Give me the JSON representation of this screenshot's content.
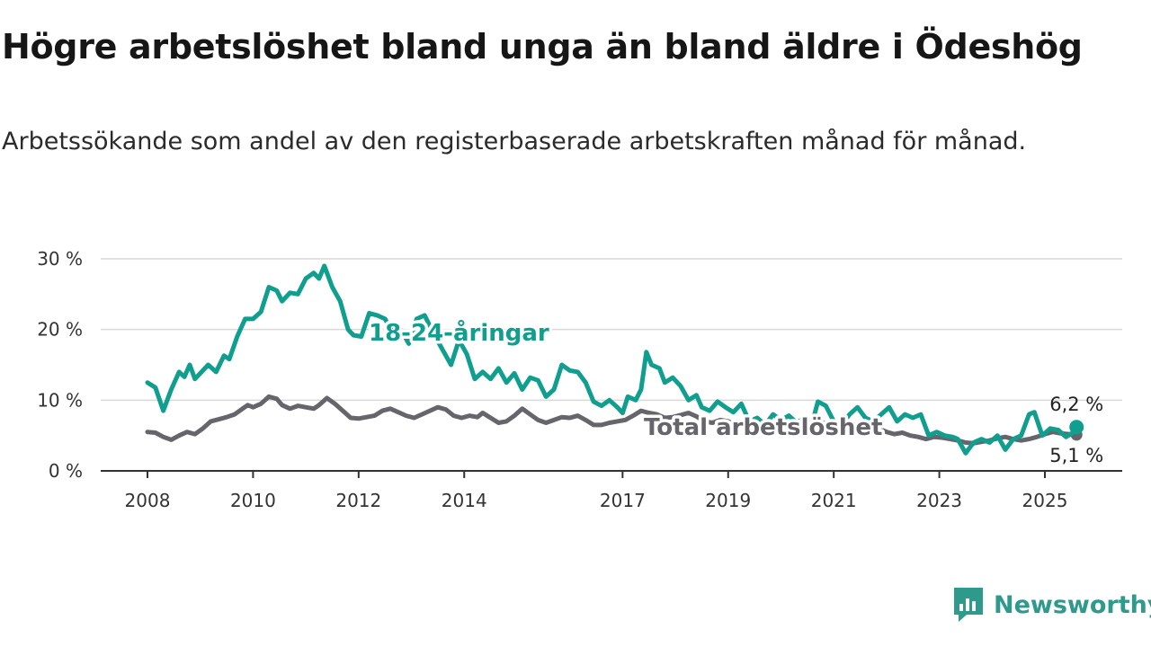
{
  "title": "Högre arbetslöshet bland unga än bland äldre i Ödeshög",
  "subtitle": "Arbetssökande som andel av den registerbaserade arbetskraften månad för månad.",
  "logo_text": "Newsworthy",
  "colors": {
    "youth": "#109E8E",
    "total": "#66656B",
    "grid": "#d9d9d9",
    "axis": "#333333",
    "logo": "#2E9A8C"
  },
  "chart_data": {
    "type": "line",
    "title": "Högre arbetslöshet bland unga än bland äldre i Ödeshög",
    "subtitle": "Arbetssökande som andel av den registerbaserade arbetskraften månad för månad.",
    "xlabel": "",
    "ylabel": "",
    "xlim": [
      2007.75,
      2026.5
    ],
    "ylim": [
      0,
      30
    ],
    "x_ticks": [
      2008,
      2010,
      2012,
      2014,
      2017,
      2019,
      2021,
      2023,
      2025
    ],
    "x_tick_labels": [
      "2008",
      "2010",
      "2012",
      "2014",
      "2017",
      "2019",
      "2021",
      "2023",
      "2025"
    ],
    "y_ticks": [
      0,
      10,
      20,
      30
    ],
    "y_tick_labels": [
      "0 %",
      "10 %",
      "20 %",
      "30 %"
    ],
    "grid": true,
    "legend": "direct labels on lines",
    "series": [
      {
        "name": "18-24-åringar",
        "color": "#109E8E",
        "end_label": "6,2 %",
        "points": [
          [
            2008.0,
            12.5
          ],
          [
            2008.15,
            11.8
          ],
          [
            2008.3,
            8.5
          ],
          [
            2008.45,
            11.5
          ],
          [
            2008.6,
            14.0
          ],
          [
            2008.7,
            13.3
          ],
          [
            2008.8,
            15.0
          ],
          [
            2008.9,
            13.0
          ],
          [
            2009.0,
            13.8
          ],
          [
            2009.15,
            15.0
          ],
          [
            2009.3,
            14.0
          ],
          [
            2009.45,
            16.3
          ],
          [
            2009.55,
            15.8
          ],
          [
            2009.7,
            19.0
          ],
          [
            2009.85,
            21.5
          ],
          [
            2010.0,
            21.5
          ],
          [
            2010.15,
            22.5
          ],
          [
            2010.3,
            26.0
          ],
          [
            2010.45,
            25.5
          ],
          [
            2010.55,
            24.0
          ],
          [
            2010.7,
            25.2
          ],
          [
            2010.85,
            25.0
          ],
          [
            2011.0,
            27.2
          ],
          [
            2011.15,
            28.0
          ],
          [
            2011.25,
            27.2
          ],
          [
            2011.35,
            29.0
          ],
          [
            2011.5,
            26.0
          ],
          [
            2011.65,
            24.0
          ],
          [
            2011.8,
            20.0
          ],
          [
            2011.9,
            19.2
          ],
          [
            2012.05,
            19.0
          ],
          [
            2012.2,
            22.3
          ],
          [
            2012.35,
            22.0
          ],
          [
            2012.5,
            21.5
          ],
          [
            2012.65,
            19.5
          ],
          [
            2012.8,
            20.0
          ],
          [
            2012.95,
            18.0
          ],
          [
            2013.1,
            21.5
          ],
          [
            2013.25,
            22.0
          ],
          [
            2013.45,
            19.0
          ],
          [
            2013.6,
            17.0
          ],
          [
            2013.75,
            15.0
          ],
          [
            2013.9,
            18.5
          ],
          [
            2014.05,
            16.5
          ],
          [
            2014.2,
            13.0
          ],
          [
            2014.35,
            14.0
          ],
          [
            2014.5,
            13.0
          ],
          [
            2014.65,
            14.5
          ],
          [
            2014.8,
            12.5
          ],
          [
            2014.95,
            13.8
          ],
          [
            2015.1,
            11.5
          ],
          [
            2015.25,
            13.2
          ],
          [
            2015.4,
            12.8
          ],
          [
            2015.55,
            10.5
          ],
          [
            2015.7,
            11.5
          ],
          [
            2015.85,
            15.0
          ],
          [
            2016.0,
            14.2
          ],
          [
            2016.15,
            14.0
          ],
          [
            2016.3,
            12.5
          ],
          [
            2016.45,
            9.8
          ],
          [
            2016.6,
            9.2
          ],
          [
            2016.75,
            10.0
          ],
          [
            2016.9,
            9.0
          ],
          [
            2017.0,
            8.2
          ],
          [
            2017.1,
            10.5
          ],
          [
            2017.25,
            10.0
          ],
          [
            2017.35,
            11.5
          ],
          [
            2017.45,
            16.8
          ],
          [
            2017.55,
            15.0
          ],
          [
            2017.7,
            14.5
          ],
          [
            2017.8,
            12.5
          ],
          [
            2017.95,
            13.2
          ],
          [
            2018.1,
            12.0
          ],
          [
            2018.25,
            10.0
          ],
          [
            2018.4,
            10.7
          ],
          [
            2018.5,
            9.0
          ],
          [
            2018.65,
            8.5
          ],
          [
            2018.8,
            9.8
          ],
          [
            2018.95,
            9.0
          ],
          [
            2019.1,
            8.3
          ],
          [
            2019.25,
            9.5
          ],
          [
            2019.4,
            7.0
          ],
          [
            2019.55,
            7.5
          ],
          [
            2019.7,
            6.5
          ],
          [
            2019.85,
            8.0
          ],
          [
            2020.0,
            7.2
          ],
          [
            2020.15,
            7.8
          ],
          [
            2020.3,
            6.8
          ],
          [
            2020.45,
            7.5
          ],
          [
            2020.6,
            7.0
          ],
          [
            2020.7,
            9.8
          ],
          [
            2020.85,
            9.2
          ],
          [
            2021.0,
            7.0
          ],
          [
            2021.15,
            6.5
          ],
          [
            2021.3,
            8.0
          ],
          [
            2021.45,
            9.0
          ],
          [
            2021.6,
            7.5
          ],
          [
            2021.75,
            7.0
          ],
          [
            2021.9,
            8.0
          ],
          [
            2022.05,
            9.0
          ],
          [
            2022.2,
            7.0
          ],
          [
            2022.35,
            8.0
          ],
          [
            2022.5,
            7.5
          ],
          [
            2022.65,
            8.0
          ],
          [
            2022.8,
            5.0
          ],
          [
            2022.95,
            5.5
          ],
          [
            2023.1,
            5.0
          ],
          [
            2023.25,
            4.8
          ],
          [
            2023.35,
            4.5
          ],
          [
            2023.5,
            2.5
          ],
          [
            2023.65,
            4.0
          ],
          [
            2023.8,
            4.5
          ],
          [
            2023.95,
            4.0
          ],
          [
            2024.1,
            5.0
          ],
          [
            2024.25,
            3.0
          ],
          [
            2024.4,
            4.5
          ],
          [
            2024.55,
            5.0
          ],
          [
            2024.7,
            8.0
          ],
          [
            2024.8,
            8.3
          ],
          [
            2024.95,
            5.0
          ],
          [
            2025.1,
            6.0
          ],
          [
            2025.25,
            5.8
          ],
          [
            2025.4,
            4.8
          ],
          [
            2025.55,
            5.5
          ],
          [
            2025.6,
            6.2
          ]
        ]
      },
      {
        "name": "Total arbetslöshet",
        "color": "#66656B",
        "end_label": "5,1 %",
        "points": [
          [
            2008.0,
            5.5
          ],
          [
            2008.15,
            5.4
          ],
          [
            2008.3,
            4.8
          ],
          [
            2008.45,
            4.4
          ],
          [
            2008.6,
            5.0
          ],
          [
            2008.75,
            5.5
          ],
          [
            2008.9,
            5.2
          ],
          [
            2009.05,
            6.0
          ],
          [
            2009.2,
            7.0
          ],
          [
            2009.35,
            7.3
          ],
          [
            2009.5,
            7.6
          ],
          [
            2009.65,
            8.0
          ],
          [
            2009.8,
            8.8
          ],
          [
            2009.9,
            9.3
          ],
          [
            2010.0,
            9.0
          ],
          [
            2010.15,
            9.5
          ],
          [
            2010.3,
            10.5
          ],
          [
            2010.45,
            10.2
          ],
          [
            2010.55,
            9.3
          ],
          [
            2010.7,
            8.8
          ],
          [
            2010.85,
            9.2
          ],
          [
            2011.0,
            9.0
          ],
          [
            2011.15,
            8.8
          ],
          [
            2011.25,
            9.3
          ],
          [
            2011.4,
            10.3
          ],
          [
            2011.55,
            9.5
          ],
          [
            2011.7,
            8.5
          ],
          [
            2011.85,
            7.5
          ],
          [
            2012.0,
            7.4
          ],
          [
            2012.15,
            7.6
          ],
          [
            2012.3,
            7.8
          ],
          [
            2012.45,
            8.5
          ],
          [
            2012.6,
            8.8
          ],
          [
            2012.75,
            8.3
          ],
          [
            2012.9,
            7.8
          ],
          [
            2013.05,
            7.5
          ],
          [
            2013.2,
            8.0
          ],
          [
            2013.35,
            8.5
          ],
          [
            2013.5,
            9.0
          ],
          [
            2013.65,
            8.7
          ],
          [
            2013.8,
            7.8
          ],
          [
            2013.95,
            7.5
          ],
          [
            2014.1,
            7.8
          ],
          [
            2014.25,
            7.6
          ],
          [
            2014.35,
            8.2
          ],
          [
            2014.5,
            7.5
          ],
          [
            2014.65,
            6.8
          ],
          [
            2014.8,
            7.0
          ],
          [
            2014.95,
            7.8
          ],
          [
            2015.1,
            8.8
          ],
          [
            2015.25,
            8.0
          ],
          [
            2015.4,
            7.2
          ],
          [
            2015.55,
            6.8
          ],
          [
            2015.7,
            7.2
          ],
          [
            2015.85,
            7.6
          ],
          [
            2016.0,
            7.5
          ],
          [
            2016.15,
            7.8
          ],
          [
            2016.3,
            7.2
          ],
          [
            2016.45,
            6.5
          ],
          [
            2016.6,
            6.5
          ],
          [
            2016.75,
            6.8
          ],
          [
            2016.9,
            7.0
          ],
          [
            2017.05,
            7.2
          ],
          [
            2017.2,
            7.8
          ],
          [
            2017.35,
            8.5
          ],
          [
            2017.5,
            8.2
          ],
          [
            2017.65,
            8.0
          ],
          [
            2017.8,
            7.5
          ],
          [
            2017.95,
            7.6
          ],
          [
            2018.1,
            7.9
          ],
          [
            2018.25,
            8.2
          ],
          [
            2018.4,
            7.7
          ],
          [
            2018.55,
            7.0
          ],
          [
            2018.7,
            6.8
          ],
          [
            2018.85,
            7.2
          ],
          [
            2019.0,
            7.0
          ],
          [
            2019.15,
            6.5
          ],
          [
            2019.3,
            6.3
          ],
          [
            2019.45,
            6.8
          ],
          [
            2019.6,
            6.5
          ],
          [
            2019.75,
            6.0
          ],
          [
            2019.9,
            6.2
          ],
          [
            2020.05,
            6.8
          ],
          [
            2020.2,
            6.5
          ],
          [
            2020.35,
            6.3
          ],
          [
            2020.5,
            6.5
          ],
          [
            2020.65,
            7.0
          ],
          [
            2020.8,
            6.8
          ],
          [
            2020.95,
            6.4
          ],
          [
            2021.1,
            6.0
          ],
          [
            2021.25,
            6.5
          ],
          [
            2021.4,
            6.2
          ],
          [
            2021.55,
            6.0
          ],
          [
            2021.7,
            5.8
          ],
          [
            2021.85,
            6.0
          ],
          [
            2022.0,
            5.5
          ],
          [
            2022.15,
            5.2
          ],
          [
            2022.3,
            5.4
          ],
          [
            2022.45,
            5.0
          ],
          [
            2022.6,
            4.8
          ],
          [
            2022.75,
            4.5
          ],
          [
            2022.9,
            4.8
          ],
          [
            2023.05,
            4.7
          ],
          [
            2023.2,
            4.5
          ],
          [
            2023.35,
            4.3
          ],
          [
            2023.5,
            4.0
          ],
          [
            2023.65,
            3.9
          ],
          [
            2023.8,
            4.1
          ],
          [
            2023.95,
            4.3
          ],
          [
            2024.1,
            4.6
          ],
          [
            2024.25,
            4.8
          ],
          [
            2024.4,
            4.5
          ],
          [
            2024.55,
            4.3
          ],
          [
            2024.7,
            4.5
          ],
          [
            2024.85,
            4.8
          ],
          [
            2025.0,
            5.2
          ],
          [
            2025.15,
            5.5
          ],
          [
            2025.3,
            5.3
          ],
          [
            2025.45,
            5.2
          ],
          [
            2025.6,
            5.1
          ]
        ]
      }
    ]
  }
}
